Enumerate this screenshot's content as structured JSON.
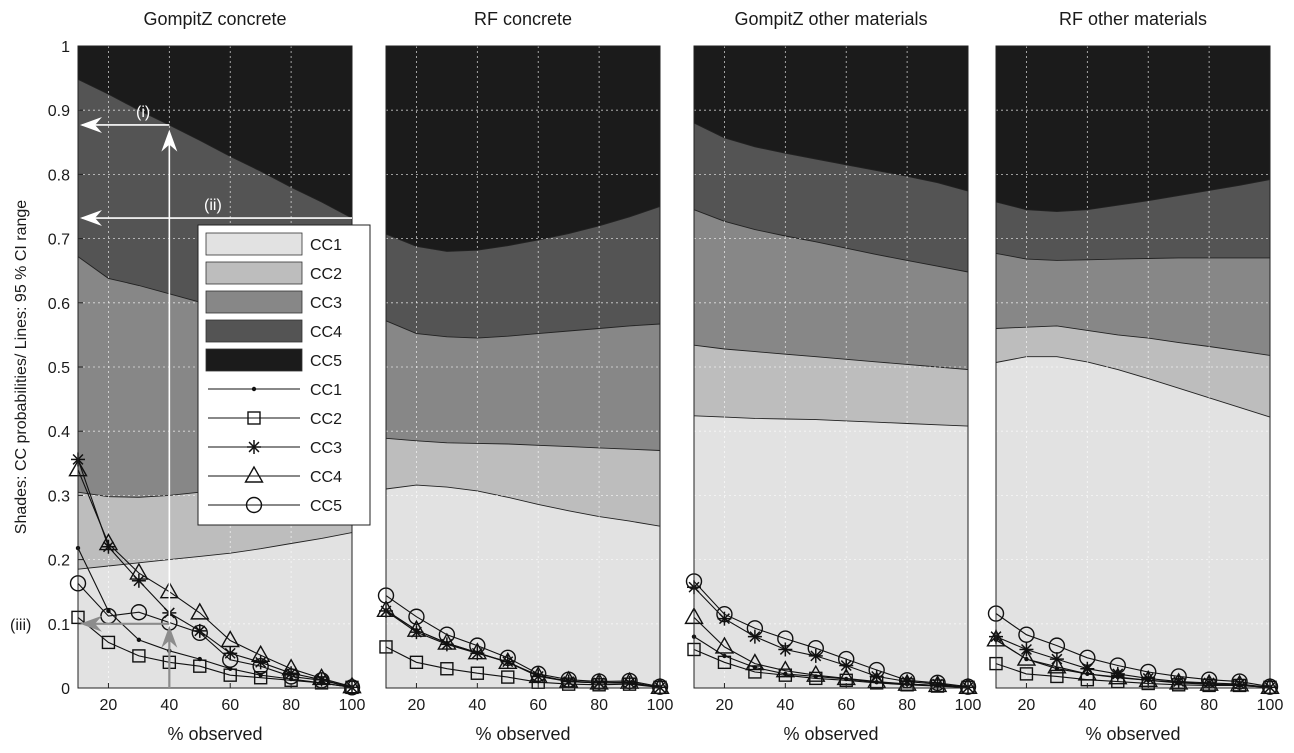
{
  "figure": {
    "ylabel": "Shades: CC probabilities/ Lines: 95 % CI range",
    "annotations": {
      "i": "(i)",
      "ii": "(ii)",
      "iii": "(iii)"
    }
  },
  "colors": {
    "CC1_band": "#e2e2e2",
    "CC2_band": "#bdbdbd",
    "CC3_band": "#878787",
    "CC4_band": "#545454",
    "CC5_band": "#1b1b1b",
    "line": "#111111",
    "grid": "#ffffff",
    "arrow_white": "#ffffff",
    "arrow_grey": "#8c8c8c"
  },
  "legend": {
    "area_entries": [
      "CC1",
      "CC2",
      "CC3",
      "CC4",
      "CC5"
    ],
    "line_entries": [
      {
        "label": "CC1",
        "marker": "dot"
      },
      {
        "label": "CC2",
        "marker": "square"
      },
      {
        "label": "CC3",
        "marker": "asterisk"
      },
      {
        "label": "CC4",
        "marker": "triangle"
      },
      {
        "label": "CC5",
        "marker": "circle"
      }
    ]
  },
  "chart_data": [
    {
      "type": "area",
      "title": "GompitZ concrete",
      "xlabel": "% observed",
      "ylabel": "Shades: CC probabilities/ Lines: 95 % CI range",
      "xlim": [
        10,
        100
      ],
      "ylim": [
        0,
        1
      ],
      "xticks": [
        20,
        40,
        60,
        80,
        100
      ],
      "yticks": [
        0,
        0.1,
        0.2,
        0.3,
        0.4,
        0.5,
        0.6,
        0.7,
        0.8,
        0.9,
        1
      ],
      "grid": true,
      "stack_x": [
        10,
        20,
        30,
        40,
        50,
        60,
        70,
        80,
        90,
        100
      ],
      "cumulative_boundaries": {
        "CC1": [
          0.185,
          0.19,
          0.195,
          0.2,
          0.205,
          0.21,
          0.217,
          0.225,
          0.233,
          0.242
        ],
        "CC2": [
          0.305,
          0.298,
          0.297,
          0.3,
          0.305,
          0.31,
          0.317,
          0.325,
          0.333,
          0.342
        ],
        "CC3": [
          0.672,
          0.638,
          0.627,
          0.614,
          0.601,
          0.59,
          0.58,
          0.568,
          0.557,
          0.547
        ],
        "CC4": [
          0.948,
          0.925,
          0.9,
          0.877,
          0.853,
          0.828,
          0.805,
          0.78,
          0.757,
          0.732
        ],
        "CC5": [
          1,
          1,
          1,
          1,
          1,
          1,
          1,
          1,
          1,
          1
        ]
      },
      "ci_lines": {
        "x": [
          10,
          20,
          30,
          40,
          50,
          60,
          70,
          80,
          90,
          100
        ],
        "CC1": [
          0.218,
          0.12,
          0.075,
          0.058,
          0.045,
          0.03,
          0.02,
          0.014,
          0.008,
          0.001
        ],
        "CC2": [
          0.11,
          0.071,
          0.05,
          0.04,
          0.034,
          0.02,
          0.016,
          0.012,
          0.008,
          0.001
        ],
        "CC3": [
          0.356,
          0.22,
          0.167,
          0.117,
          0.089,
          0.054,
          0.04,
          0.023,
          0.013,
          0.001
        ],
        "CC4": [
          0.34,
          0.225,
          0.179,
          0.15,
          0.117,
          0.074,
          0.051,
          0.03,
          0.015,
          0.002
        ],
        "CC5": [
          0.163,
          0.112,
          0.118,
          0.102,
          0.086,
          0.044,
          0.034,
          0.018,
          0.012,
          0.001
        ]
      }
    },
    {
      "type": "area",
      "title": "RF concrete",
      "xlabel": "% observed",
      "xlim": [
        10,
        100
      ],
      "ylim": [
        0,
        1
      ],
      "xticks": [
        20,
        40,
        60,
        80,
        100
      ],
      "grid": true,
      "stack_x": [
        10,
        20,
        30,
        40,
        50,
        60,
        70,
        80,
        90,
        100
      ],
      "cumulative_boundaries": {
        "CC1": [
          0.31,
          0.316,
          0.313,
          0.307,
          0.297,
          0.286,
          0.276,
          0.267,
          0.26,
          0.252
        ],
        "CC2": [
          0.389,
          0.385,
          0.382,
          0.381,
          0.38,
          0.378,
          0.376,
          0.374,
          0.372,
          0.37
        ],
        "CC3": [
          0.572,
          0.552,
          0.547,
          0.545,
          0.548,
          0.552,
          0.556,
          0.56,
          0.564,
          0.567
        ],
        "CC4": [
          0.707,
          0.688,
          0.68,
          0.682,
          0.689,
          0.698,
          0.708,
          0.72,
          0.734,
          0.75
        ],
        "CC5": [
          1,
          1,
          1,
          1,
          1,
          1,
          1,
          1,
          1,
          1
        ]
      },
      "ci_lines": {
        "x": [
          10,
          20,
          30,
          40,
          50,
          60,
          70,
          80,
          90,
          100
        ],
        "CC1": [
          0.121,
          0.09,
          0.07,
          0.055,
          0.04,
          0.02,
          0.01,
          0.008,
          0.008,
          0.001
        ],
        "CC2": [
          0.064,
          0.04,
          0.03,
          0.023,
          0.017,
          0.009,
          0.006,
          0.005,
          0.006,
          0.001
        ],
        "CC3": [
          0.12,
          0.087,
          0.068,
          0.054,
          0.041,
          0.018,
          0.01,
          0.008,
          0.008,
          0.001
        ],
        "CC4": [
          0.121,
          0.09,
          0.07,
          0.055,
          0.04,
          0.018,
          0.011,
          0.008,
          0.009,
          0.001
        ],
        "CC5": [
          0.144,
          0.111,
          0.083,
          0.066,
          0.047,
          0.022,
          0.013,
          0.01,
          0.011,
          0.002
        ]
      }
    },
    {
      "type": "area",
      "title": "GompitZ other materials",
      "xlabel": "% observed",
      "xlim": [
        10,
        100
      ],
      "ylim": [
        0,
        1
      ],
      "xticks": [
        20,
        40,
        60,
        80,
        100
      ],
      "grid": true,
      "stack_x": [
        10,
        20,
        30,
        40,
        50,
        60,
        70,
        80,
        90,
        100
      ],
      "cumulative_boundaries": {
        "CC1": [
          0.424,
          0.422,
          0.42,
          0.419,
          0.418,
          0.416,
          0.414,
          0.412,
          0.41,
          0.408
        ],
        "CC2": [
          0.534,
          0.528,
          0.524,
          0.52,
          0.516,
          0.512,
          0.508,
          0.504,
          0.5,
          0.496
        ],
        "CC3": [
          0.745,
          0.727,
          0.714,
          0.704,
          0.695,
          0.685,
          0.675,
          0.666,
          0.657,
          0.648
        ],
        "CC4": [
          0.88,
          0.857,
          0.843,
          0.833,
          0.824,
          0.815,
          0.806,
          0.797,
          0.787,
          0.774
        ],
        "CC5": [
          1,
          1,
          1,
          1,
          1,
          1,
          1,
          1,
          1,
          1
        ]
      },
      "ci_lines": {
        "x": [
          10,
          20,
          30,
          40,
          50,
          60,
          70,
          80,
          90,
          100
        ],
        "CC1": [
          0.08,
          0.05,
          0.032,
          0.022,
          0.018,
          0.014,
          0.009,
          0.006,
          0.004,
          0.001
        ],
        "CC2": [
          0.06,
          0.04,
          0.025,
          0.02,
          0.015,
          0.012,
          0.008,
          0.005,
          0.003,
          0.001
        ],
        "CC3": [
          0.157,
          0.108,
          0.08,
          0.06,
          0.05,
          0.035,
          0.018,
          0.01,
          0.006,
          0.001
        ],
        "CC4": [
          0.11,
          0.064,
          0.038,
          0.027,
          0.02,
          0.015,
          0.01,
          0.006,
          0.004,
          0.001
        ],
        "CC5": [
          0.166,
          0.115,
          0.093,
          0.077,
          0.062,
          0.045,
          0.028,
          0.012,
          0.008,
          0.002
        ]
      }
    },
    {
      "type": "area",
      "title": "RF other materials",
      "xlabel": "% observed",
      "xlim": [
        10,
        100
      ],
      "ylim": [
        0,
        1
      ],
      "xticks": [
        20,
        40,
        60,
        80,
        100
      ],
      "grid": true,
      "stack_x": [
        10,
        20,
        30,
        40,
        50,
        60,
        70,
        80,
        90,
        100
      ],
      "cumulative_boundaries": {
        "CC1": [
          0.507,
          0.516,
          0.516,
          0.508,
          0.496,
          0.482,
          0.467,
          0.452,
          0.437,
          0.422
        ],
        "CC2": [
          0.56,
          0.562,
          0.564,
          0.557,
          0.55,
          0.545,
          0.538,
          0.532,
          0.525,
          0.518
        ],
        "CC3": [
          0.677,
          0.668,
          0.666,
          0.667,
          0.668,
          0.669,
          0.67,
          0.67,
          0.67,
          0.67
        ],
        "CC4": [
          0.757,
          0.745,
          0.742,
          0.745,
          0.752,
          0.759,
          0.767,
          0.775,
          0.783,
          0.792
        ],
        "CC5": [
          1,
          1,
          1,
          1,
          1,
          1,
          1,
          1,
          1,
          1
        ]
      },
      "ci_lines": {
        "x": [
          10,
          20,
          30,
          40,
          50,
          60,
          70,
          80,
          90,
          100
        ],
        "CC1": [
          0.075,
          0.045,
          0.03,
          0.022,
          0.017,
          0.012,
          0.009,
          0.006,
          0.004,
          0.001
        ],
        "CC2": [
          0.038,
          0.022,
          0.018,
          0.013,
          0.01,
          0.007,
          0.005,
          0.004,
          0.004,
          0.001
        ],
        "CC3": [
          0.08,
          0.06,
          0.045,
          0.03,
          0.022,
          0.015,
          0.01,
          0.008,
          0.006,
          0.001
        ],
        "CC4": [
          0.075,
          0.045,
          0.033,
          0.022,
          0.016,
          0.012,
          0.008,
          0.006,
          0.005,
          0.001
        ],
        "CC5": [
          0.116,
          0.083,
          0.066,
          0.047,
          0.035,
          0.025,
          0.018,
          0.013,
          0.01,
          0.002
        ]
      }
    }
  ]
}
